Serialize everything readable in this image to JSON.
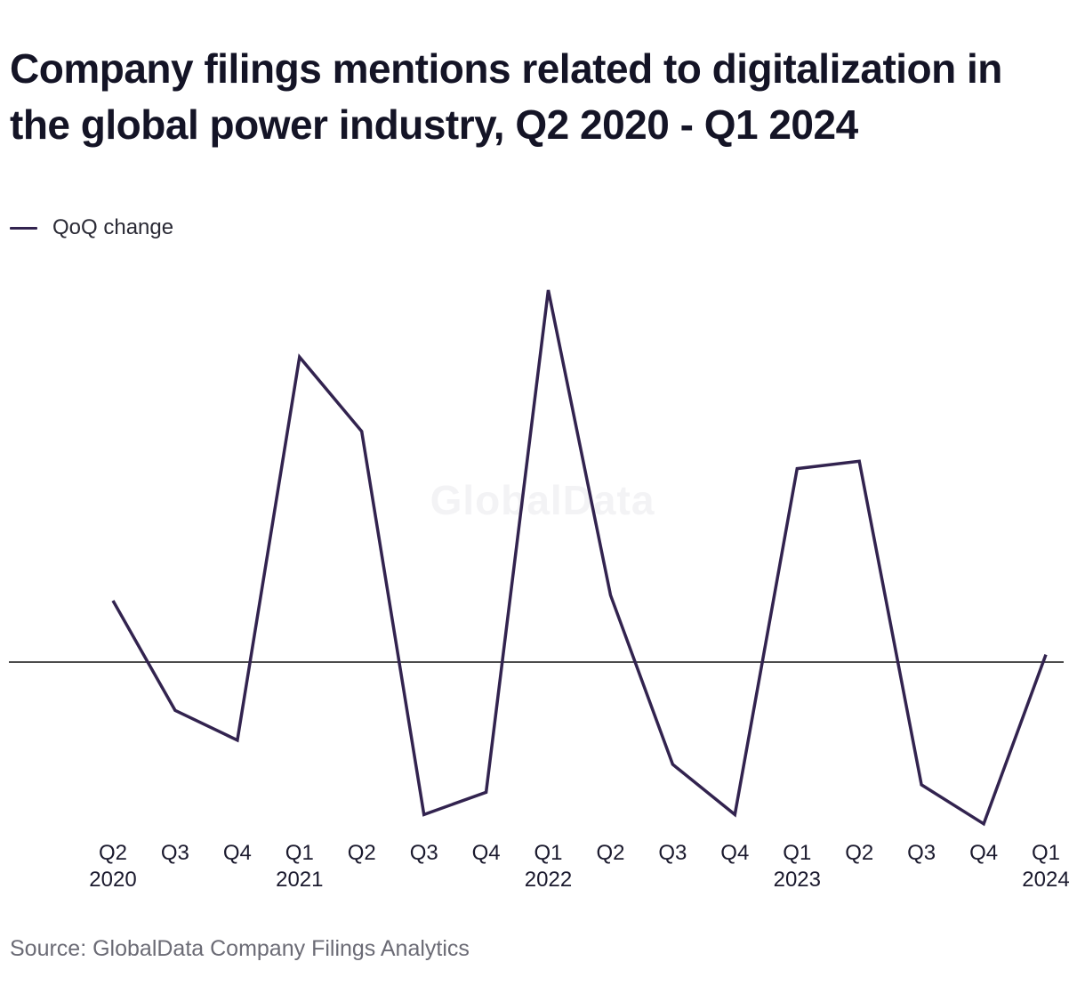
{
  "title": "Company filings mentions related to digitalization in the global power industry, Q2 2020 - Q1 2024",
  "watermark": "GlobalData",
  "source": "Source: GlobalData Company Filings Analytics",
  "colors": {
    "line": "#32234f",
    "zero_line": "#111111",
    "text": "#1b1a2e",
    "watermark": "#f3f3f5"
  },
  "chart_data": {
    "type": "line",
    "title": "Company filings mentions related to digitalization in the global power industry, Q2 2020 - Q1 2024",
    "xlabel": "",
    "ylabel": "",
    "grid": false,
    "legend_position": "top-left",
    "y_range": [
      -0.44,
      1.0
    ],
    "x_ticks": [
      {
        "quarter": "Q2",
        "year": "2020"
      },
      {
        "quarter": "Q3",
        "year": ""
      },
      {
        "quarter": "Q4",
        "year": ""
      },
      {
        "quarter": "Q1",
        "year": "2021"
      },
      {
        "quarter": "Q2",
        "year": ""
      },
      {
        "quarter": "Q3",
        "year": ""
      },
      {
        "quarter": "Q4",
        "year": ""
      },
      {
        "quarter": "Q1",
        "year": "2022"
      },
      {
        "quarter": "Q2",
        "year": ""
      },
      {
        "quarter": "Q3",
        "year": ""
      },
      {
        "quarter": "Q4",
        "year": ""
      },
      {
        "quarter": "Q1",
        "year": "2023"
      },
      {
        "quarter": "Q2",
        "year": ""
      },
      {
        "quarter": "Q3",
        "year": ""
      },
      {
        "quarter": "Q4",
        "year": ""
      },
      {
        "quarter": "Q1",
        "year": "2024"
      }
    ],
    "series": [
      {
        "name": "QoQ change",
        "values": [
          0.165,
          -0.13,
          -0.21,
          0.82,
          0.62,
          -0.41,
          -0.35,
          1.0,
          0.18,
          -0.275,
          -0.41,
          0.52,
          0.54,
          -0.33,
          -0.435,
          0.02
        ]
      }
    ]
  }
}
